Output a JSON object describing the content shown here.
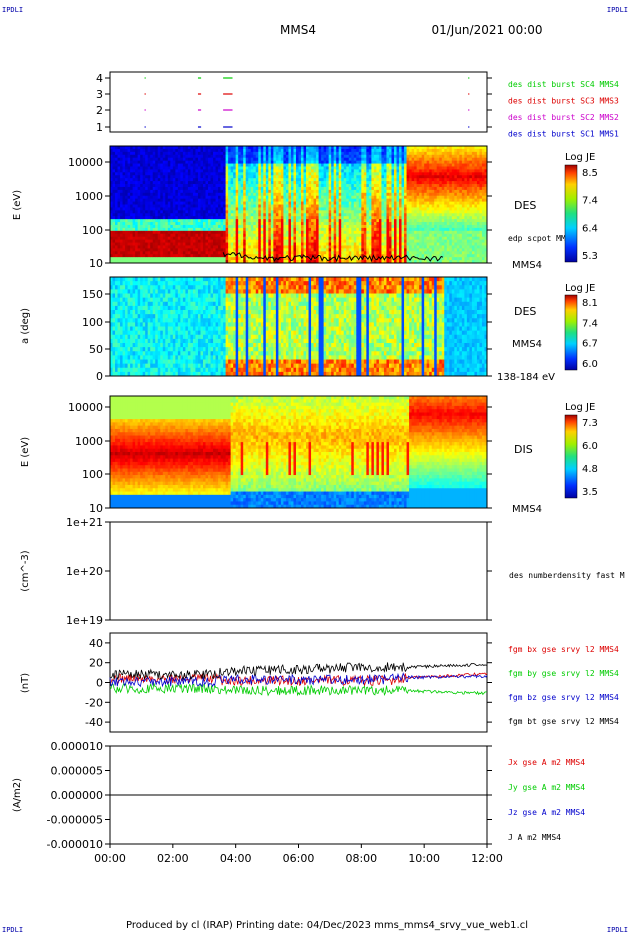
{
  "header": {
    "corner_tl": "IPDLI",
    "corner_tr": "IPDLI",
    "corner_bl": "IPDLI",
    "corner_br": "IPDLI",
    "spacecraft": "MMS4",
    "date": "01/Jun/2021 00:00"
  },
  "footer": {
    "text": "Produced by cl (IRAP)   Printing date: 04/Dec/2023   mms_mms4_srvy_vue_web1.cl"
  },
  "colors": {
    "red": "#dd0000",
    "green": "#00cc00",
    "blue": "#0000cc",
    "magenta": "#cc00cc",
    "black": "#000000"
  },
  "chart_data": [
    {
      "type": "scatter",
      "panel": "burst",
      "y_ticks": [
        "4",
        "3",
        "2",
        "1"
      ],
      "legend": [
        {
          "label": "des dist burst SC1 MMS1",
          "color": "#0000cc",
          "level": 1
        },
        {
          "label": "des dist burst SC2 MMS2",
          "color": "#cc00cc",
          "level": 2
        },
        {
          "label": "des dist burst SC3 MMS3",
          "color": "#dd0000",
          "level": 3
        },
        {
          "label": "des dist burst SC4 MMS4",
          "color": "#00cc00",
          "level": 4
        }
      ],
      "intervals_hours": [
        [
          1.1,
          1.12
        ],
        [
          2.8,
          2.9
        ],
        [
          3.6,
          3.9
        ],
        [
          11.4,
          11.42
        ]
      ]
    },
    {
      "type": "heatmap",
      "panel": "des-energy",
      "ylabel": "E (eV)",
      "y_scale": "log",
      "y_ticks": [
        "10000",
        "1000",
        "100",
        "10"
      ],
      "side_label": "DES",
      "overlay_label": "edp scpot MMS4",
      "sc_label": "MMS4",
      "colorbar": {
        "title": "Log JE",
        "ticks": [
          "8.5",
          "7.4",
          "6.4",
          "5.3"
        ]
      }
    },
    {
      "type": "heatmap",
      "panel": "des-pitch",
      "ylabel": "a (deg)",
      "y_ticks": [
        "150",
        "100",
        "50",
        "0"
      ],
      "side_label": "DES",
      "sc_label": "MMS4",
      "energy_label": "138-184 eV",
      "colorbar": {
        "title": "Log JE",
        "ticks": [
          "8.1",
          "7.4",
          "6.7",
          "6.0"
        ]
      }
    },
    {
      "type": "heatmap",
      "panel": "dis-energy",
      "ylabel": "E (eV)",
      "y_scale": "log",
      "y_ticks": [
        "10000",
        "1000",
        "100",
        "10"
      ],
      "side_label": "DIS",
      "sc_label": "MMS4",
      "colorbar": {
        "title": "Log JE",
        "ticks": [
          "7.3",
          "6.0",
          "4.8",
          "3.5"
        ]
      }
    },
    {
      "type": "line",
      "panel": "density",
      "ylabel": "(cm^-3)",
      "y_scale": "log",
      "y_ticks": [
        "1e+21",
        "1e+20",
        "1e+19"
      ],
      "legend": [
        "des numberdensity fast M"
      ]
    },
    {
      "type": "line",
      "panel": "fgm",
      "ylabel": "(nT)",
      "ylim": [
        -50,
        50
      ],
      "y_ticks": [
        "40",
        "20",
        "0",
        "-20",
        "-40"
      ],
      "series": [
        {
          "name": "fgm bx gse srvy l2 MMS4",
          "color": "#dd0000"
        },
        {
          "name": "fgm by gse srvy l2 MMS4",
          "color": "#00cc00"
        },
        {
          "name": "fgm bz gse srvy l2 MMS4",
          "color": "#0000cc"
        },
        {
          "name": "fgm bt gse srvy l2 MMS4",
          "color": "#000000"
        }
      ],
      "x_ticks": [
        "00:00",
        "02:00",
        "04:00",
        "06:00",
        "08:00",
        "10:00",
        "12:00"
      ]
    },
    {
      "type": "line",
      "panel": "current",
      "ylabel": "(A/m2)",
      "ylim": [
        -1e-05,
        1e-05
      ],
      "y_ticks": [
        "0.000010",
        "0.000005",
        "0.000000",
        "-0.000005",
        "-0.000010"
      ],
      "series": [
        {
          "name": "Jx gse A m2 MMS4",
          "color": "#dd0000"
        },
        {
          "name": "Jy gse A m2 MMS4",
          "color": "#00cc00"
        },
        {
          "name": "Jz gse A m2 MMS4",
          "color": "#0000cc"
        },
        {
          "name": "J A m2 MMS4",
          "color": "#000000"
        }
      ],
      "x_ticks": [
        "00:00",
        "02:00",
        "04:00",
        "06:00",
        "08:00",
        "10:00",
        "12:00"
      ]
    }
  ]
}
